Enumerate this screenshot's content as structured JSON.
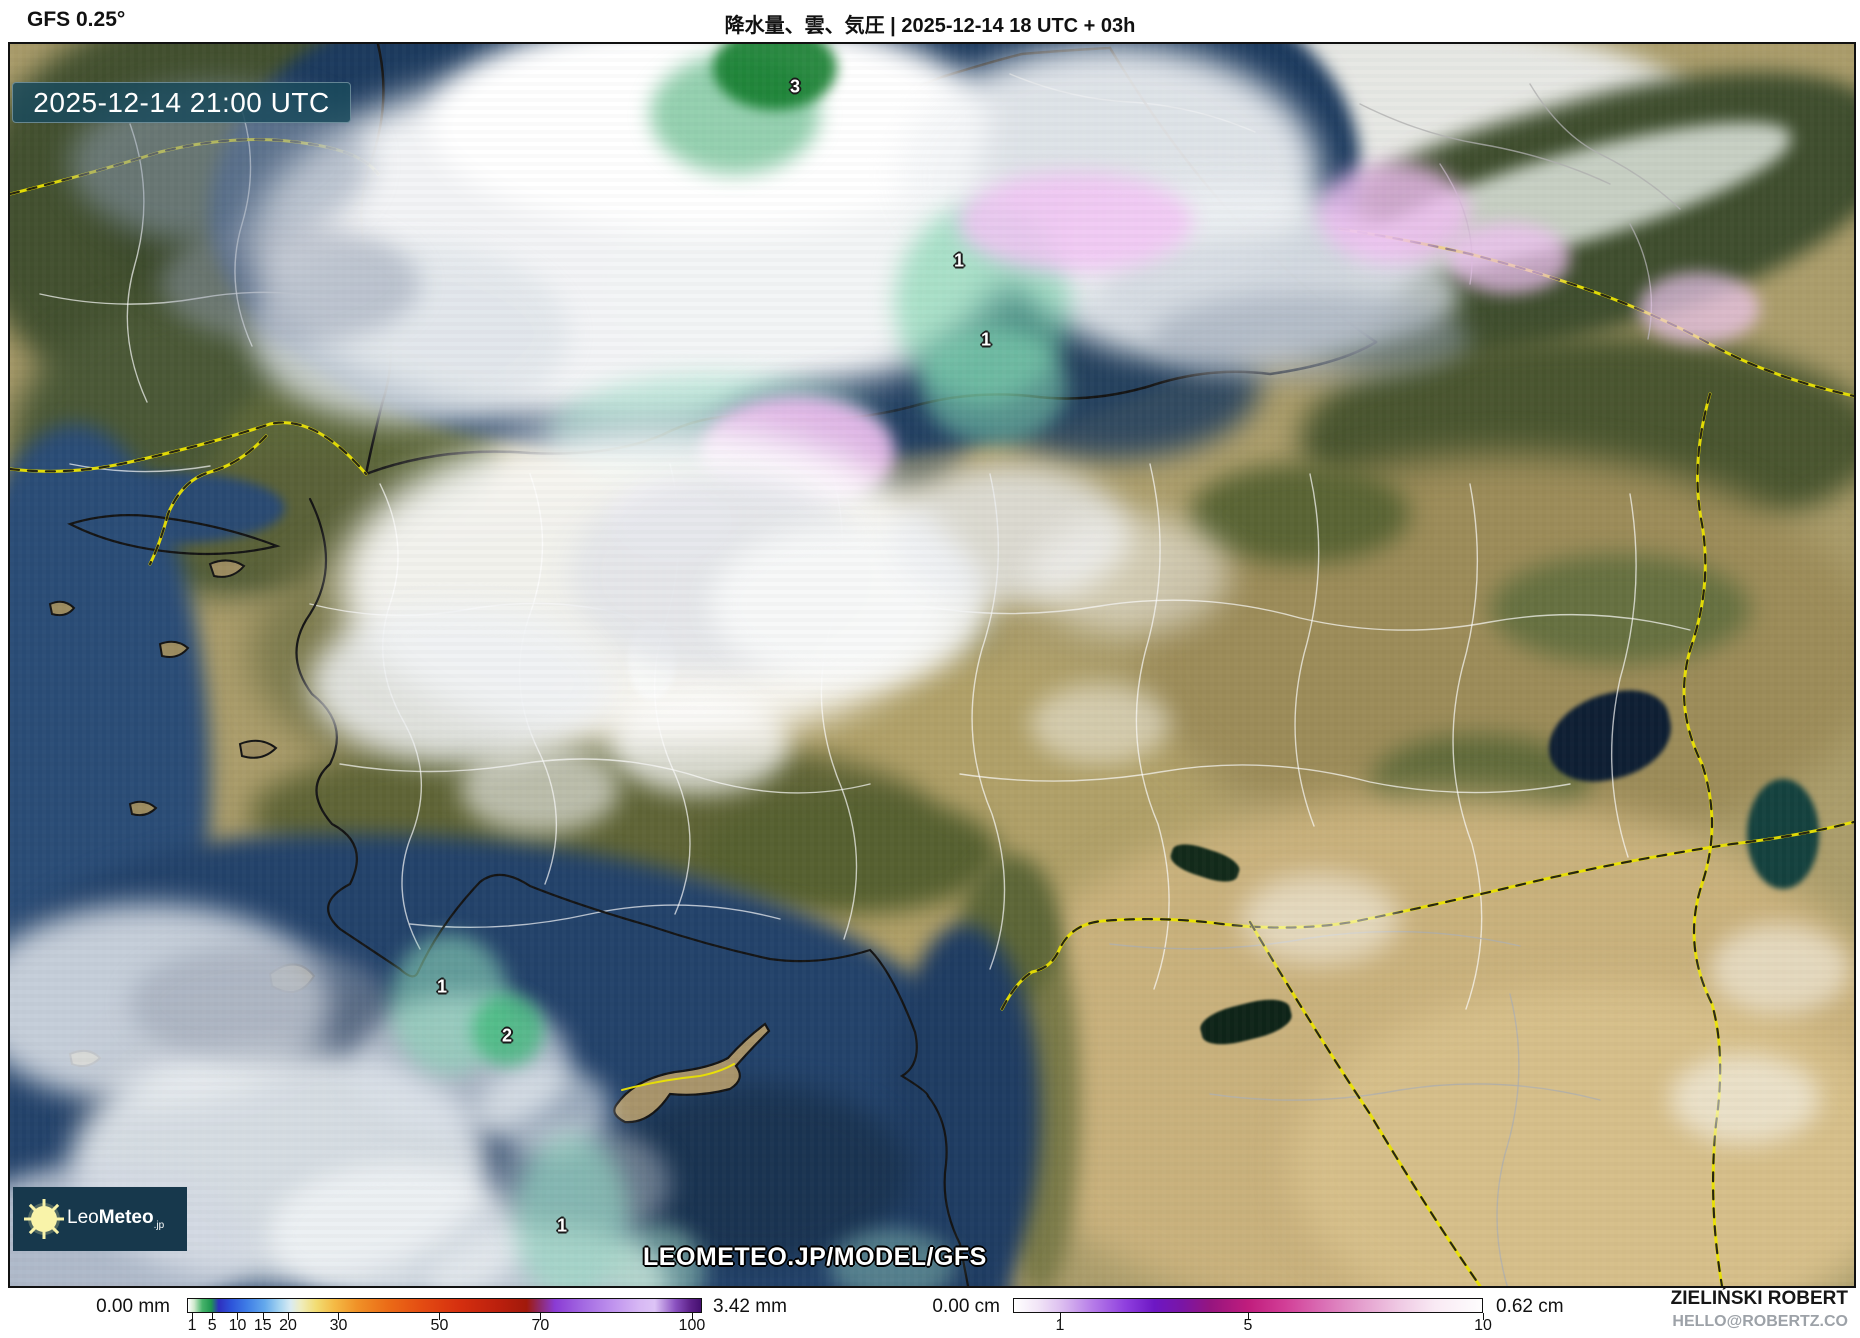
{
  "header": {
    "model_label": "GFS 0.25°",
    "title": "降水量、雲、気圧 | 2025-12-14 18 UTC + 03h"
  },
  "map": {
    "timestamp_overlay": "2025-12-14 21:00 UTC",
    "watermark": "LEOMETEO.JP/MODEL/GFS",
    "logo": {
      "name_light": "Leo",
      "name_bold": "Meteo",
      "suffix": ".jp"
    },
    "value_labels": [
      {
        "value": "3"
      },
      {
        "value": "1"
      },
      {
        "value": "1"
      },
      {
        "value": "1"
      },
      {
        "value": "2"
      },
      {
        "value": "1"
      }
    ]
  },
  "legend": {
    "precipitation": {
      "min_label": "0.00 mm",
      "max_label": "3.42 mm",
      "tick_values": [
        1,
        5,
        10,
        15,
        20,
        30,
        50,
        70,
        100
      ],
      "scale_max": 102
    },
    "snow": {
      "min_label": "0.00 cm",
      "max_label": "0.62 cm",
      "tick_values": [
        1,
        5,
        10
      ],
      "scale_max": 10
    }
  },
  "credit": {
    "name": "ZIELIŃSKI ROBERT",
    "email": "HELLO@ROBERTZ.CO"
  },
  "colors": {
    "timestamp_bg": "rgba(26,74,92,0.85)",
    "logo_bg": "#17384c",
    "country_border_yellow": "#ece400",
    "coastline_black": "#141414",
    "sea_deep": "#1c3a5e",
    "land_tan": "#ab9d6b",
    "land_green": "#42502f",
    "desert": "#c9b17c",
    "precip_gradient": [
      [
        0,
        "#ffffff"
      ],
      [
        0.012,
        "#cfe9cd"
      ],
      [
        0.028,
        "#46b36a"
      ],
      [
        0.045,
        "#1f9750"
      ],
      [
        0.06,
        "#2e2fbe"
      ],
      [
        0.085,
        "#2d55da"
      ],
      [
        0.115,
        "#3f7de6"
      ],
      [
        0.15,
        "#64a9ec"
      ],
      [
        0.18,
        "#a9d6f1"
      ],
      [
        0.2,
        "#d9ebf3"
      ],
      [
        0.22,
        "#efedbe"
      ],
      [
        0.25,
        "#f2dc72"
      ],
      [
        0.285,
        "#f4ba45"
      ],
      [
        0.33,
        "#f09127"
      ],
      [
        0.39,
        "#eb6b17"
      ],
      [
        0.46,
        "#e34a12"
      ],
      [
        0.53,
        "#d52f0f"
      ],
      [
        0.61,
        "#b91f0d"
      ],
      [
        0.66,
        "#a1190b"
      ],
      [
        0.685,
        "#8f2a68"
      ],
      [
        0.715,
        "#8a3bd4"
      ],
      [
        0.77,
        "#a369e2"
      ],
      [
        0.83,
        "#c094ee"
      ],
      [
        0.88,
        "#d7b8f4"
      ],
      [
        0.91,
        "#ddc4f6"
      ],
      [
        0.95,
        "#8a52c0"
      ],
      [
        0.98,
        "#5c2188"
      ],
      [
        1,
        "#451070"
      ]
    ],
    "snow_gradient": [
      [
        0,
        "#ffffff"
      ],
      [
        0.05,
        "#f2e6f7"
      ],
      [
        0.1,
        "#ddc0f0"
      ],
      [
        0.17,
        "#b57ae8"
      ],
      [
        0.24,
        "#8e3ede"
      ],
      [
        0.3,
        "#6d17c4"
      ],
      [
        0.36,
        "#7a15a5"
      ],
      [
        0.42,
        "#96157f"
      ],
      [
        0.5,
        "#c01d7d"
      ],
      [
        0.58,
        "#d23f97"
      ],
      [
        0.66,
        "#da6fb5"
      ],
      [
        0.74,
        "#e49ecd"
      ],
      [
        0.82,
        "#efc8e3"
      ],
      [
        0.9,
        "#f9eaf4"
      ],
      [
        1,
        "#fefdfe"
      ]
    ]
  }
}
